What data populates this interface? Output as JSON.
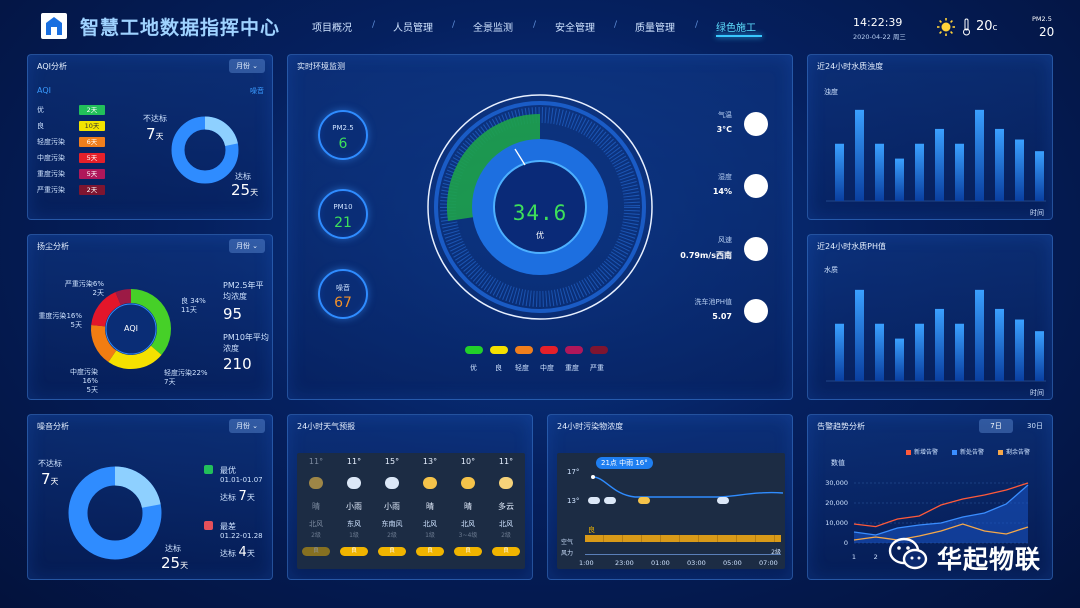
{
  "header": {
    "title": "智慧工地数据指挥中心",
    "nav": [
      "项目概况",
      "人员管理",
      "全景监测",
      "安全管理",
      "质量管理",
      "绿色施工"
    ],
    "active_nav": "绿色施工",
    "time": "14:22:39",
    "date": "2020-04-22 周三",
    "temperature": "20",
    "temperature_unit": "c",
    "pm25_label": "PM2.5",
    "pm25_value": "20"
  },
  "aqi_panel": {
    "title": "AQI分析",
    "select": "月份",
    "label_aqi": "AQI",
    "label_noise": "噪音",
    "levels": [
      {
        "name": "优",
        "days": "2天",
        "color": "#22c05a"
      },
      {
        "name": "良",
        "days": "10天",
        "color": "#f2e400"
      },
      {
        "name": "轻度污染",
        "days": "6天",
        "color": "#f07f1d"
      },
      {
        "name": "中度污染",
        "days": "5天",
        "color": "#e5202a"
      },
      {
        "name": "重度污染",
        "days": "5天",
        "color": "#b0175a"
      },
      {
        "name": "严重污染",
        "days": "2天",
        "color": "#7e1530"
      }
    ],
    "not_ok_label": "不达标",
    "not_ok_days": "7",
    "ok_label": "达标",
    "ok_days": "25",
    "day_unit": "天"
  },
  "dust_panel": {
    "title": "扬尘分析",
    "select": "月份",
    "center_label": "AQI",
    "slices": [
      {
        "name": "良",
        "pct": "34%",
        "days": "11天",
        "value": 34,
        "color": "#46d028"
      },
      {
        "name": "轻度污染",
        "pct": "22%",
        "days": "7天",
        "value": 22,
        "color": "#f5e100"
      },
      {
        "name": "中度污染",
        "pct": "16%",
        "days": "5天",
        "value": 16,
        "color": "#f27d12"
      },
      {
        "name": "重度污染",
        "pct": "16%",
        "days": "5天",
        "value": 16,
        "color": "#e3162a"
      },
      {
        "name": "严重污染",
        "pct": "6%",
        "days": "2天",
        "value": 6,
        "color": "#9c1a45"
      }
    ],
    "pm25_label": "PM2.5年平均浓度",
    "pm25_value": "95",
    "pm10_label": "PM10年平均浓度",
    "pm10_value": "210"
  },
  "noise_panel": {
    "title": "噪音分析",
    "select": "月份",
    "not_ok_label": "不达标",
    "not_ok_days": "7",
    "ok_label": "达标",
    "ok_days": "25",
    "day_unit": "天",
    "best_label": "最优",
    "best_range": "01.01-01.07",
    "best_ok": "达标",
    "best_days": "7",
    "worst_label": "最差",
    "worst_range": "01.22-01.28",
    "worst_ok": "达标",
    "worst_days": "4"
  },
  "env_panel": {
    "title": "实时环境监测",
    "pm25_label": "PM2.5",
    "pm25_value": "6",
    "pm10_label": "PM10",
    "pm10_value": "21",
    "noise_label": "噪音",
    "noise_value": "67",
    "gauge_value": "34.6",
    "gauge_level": "优",
    "readings": [
      {
        "label": "气温",
        "value": "3°C"
      },
      {
        "label": "湿度",
        "value": "14%"
      },
      {
        "label": "风速",
        "value": "0.79m/s西南"
      },
      {
        "label": "洗车池PH值",
        "value": "5.07"
      }
    ],
    "legend": [
      {
        "name": "优",
        "color": "#22d02a"
      },
      {
        "name": "良",
        "color": "#f5e100"
      },
      {
        "name": "轻度",
        "color": "#f07f1d"
      },
      {
        "name": "中度",
        "color": "#e5202a"
      },
      {
        "name": "重度",
        "color": "#b0175a"
      },
      {
        "name": "严重",
        "color": "#7e1530"
      }
    ]
  },
  "water_panel": {
    "title": "近24小时水质浊度",
    "ylabel": "浊度",
    "xlabel": "时间",
    "chart_data": {
      "type": "bar",
      "values": [
        54,
        86,
        54,
        40,
        54,
        68,
        54,
        86,
        68,
        58,
        47
      ]
    }
  },
  "ph_panel": {
    "title": "近24小时水质PH值",
    "ylabel": "水质",
    "xlabel": "时间",
    "chart_data": {
      "type": "bar",
      "values": [
        54,
        86,
        54,
        40,
        54,
        68,
        54,
        86,
        68,
        58,
        47
      ]
    }
  },
  "weather_panel": {
    "title": "24小时天气预报",
    "days": [
      {
        "temp": "11°",
        "weather": "晴",
        "wind_dir": "北风",
        "wind_lv": "2级",
        "icon": "moon-icon"
      },
      {
        "temp": "11°",
        "weather": "小雨",
        "wind_dir": "东风",
        "wind_lv": "1级",
        "icon": "rain-icon"
      },
      {
        "temp": "15°",
        "weather": "小雨",
        "wind_dir": "东南风",
        "wind_lv": "2级",
        "icon": "rain-icon"
      },
      {
        "temp": "13°",
        "weather": "晴",
        "wind_dir": "北风",
        "wind_lv": "1级",
        "icon": "moon-icon"
      },
      {
        "temp": "10°",
        "weather": "晴",
        "wind_dir": "北风",
        "wind_lv": "3~4级",
        "icon": "moon-icon"
      },
      {
        "temp": "11°",
        "weather": "多云",
        "wind_dir": "北风",
        "wind_lv": "2级",
        "icon": "cloud-sun-icon"
      }
    ],
    "aqi_badge": "良"
  },
  "pollution_panel": {
    "title": "24小时污染物浓度",
    "tooltip": "21点 中雨 16°",
    "y_high": "17°",
    "y_low": "13°",
    "aqi_label": "空气",
    "aqi_badge": "良",
    "wind_label": "风力",
    "wind_value": "2级",
    "times": [
      "1:00",
      "23:00",
      "01:00",
      "03:00",
      "05:00",
      "07:00"
    ]
  },
  "alarm_panel": {
    "title": "告警趋势分析",
    "tab_7d": "7日",
    "tab_30d": "30日",
    "ylabel": "数值",
    "chart_data": {
      "type": "line",
      "x": [
        "1",
        "2",
        "3",
        "4",
        "5",
        "6",
        "7",
        "8",
        "9"
      ],
      "ylim": [
        0,
        30000
      ],
      "yticks": [
        "30,000",
        "20,000",
        "10,000",
        "0"
      ],
      "series": [
        {
          "name": "新增告警",
          "color": "#ff5a3a",
          "values": [
            9500,
            8200,
            12000,
            13500,
            19000,
            22000,
            24000,
            26500,
            30000
          ]
        },
        {
          "name": "新处告警",
          "color": "#3a8dff",
          "values": [
            5500,
            4000,
            7500,
            9000,
            10000,
            13000,
            15000,
            19500,
            29000
          ]
        },
        {
          "name": "剩余告警",
          "color": "#f5a84a",
          "values": [
            1500,
            3000,
            1500,
            3500,
            6000,
            9500,
            6000,
            4500,
            8000
          ]
        }
      ]
    }
  },
  "watermark": "华起物联"
}
